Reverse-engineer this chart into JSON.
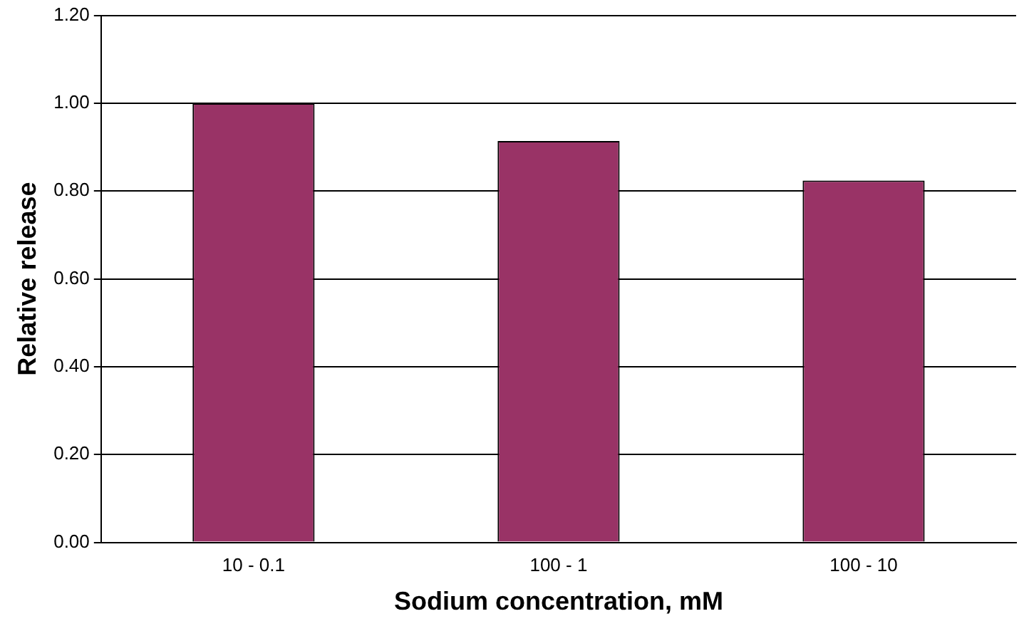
{
  "chart_data": {
    "type": "bar",
    "xlabel": "Sodium concentration, mM",
    "ylabel": "Relative release",
    "categories": [
      "10 - 0.1",
      "100 - 1",
      "100 - 10"
    ],
    "values": [
      1.0,
      0.914,
      0.824
    ],
    "color": "#993366",
    "ylim": [
      0,
      1.2
    ],
    "yticks": [
      {
        "value": 0,
        "label": "0.00"
      },
      {
        "value": 0.2,
        "label": "0.20"
      },
      {
        "value": 0.4,
        "label": "0.40"
      },
      {
        "value": 0.6,
        "label": "0.60"
      },
      {
        "value": 0.8,
        "label": "0.80"
      },
      {
        "value": 1.0,
        "label": "1.00"
      },
      {
        "value": 1.2,
        "label": "1.20"
      }
    ],
    "grid": "y",
    "legend": false
  }
}
